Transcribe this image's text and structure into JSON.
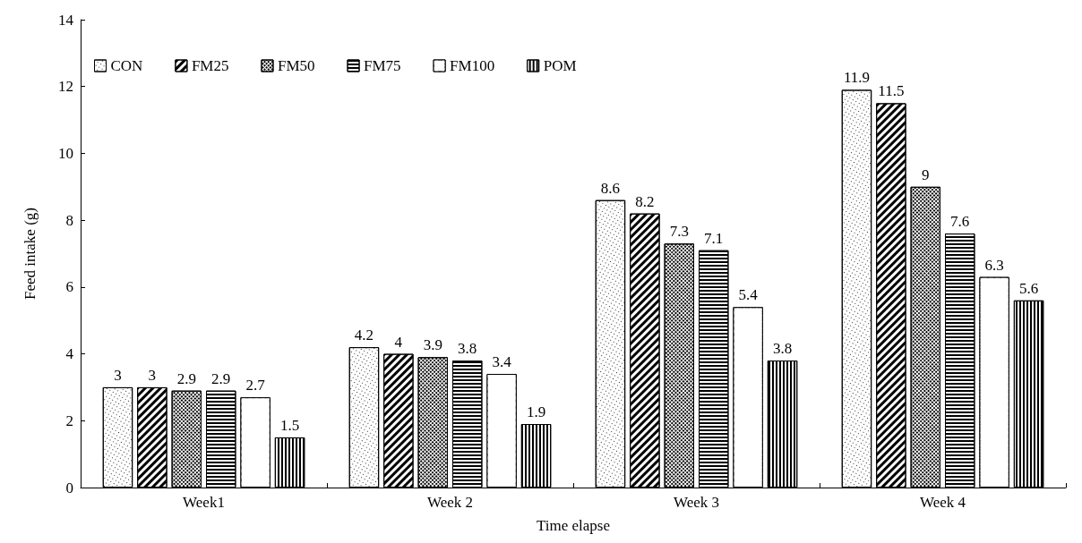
{
  "chart_data": {
    "type": "bar",
    "xlabel": "Time elapse",
    "ylabel": "Feed intake (g)",
    "categories": [
      "Week1",
      "Week 2",
      "Week 3",
      "Week 4"
    ],
    "series": [
      {
        "name": "CON",
        "values": [
          3,
          4.2,
          8.6,
          11.9
        ]
      },
      {
        "name": "FM25",
        "values": [
          3,
          4,
          8.2,
          11.5
        ]
      },
      {
        "name": "FM50",
        "values": [
          2.9,
          3.9,
          7.3,
          9
        ]
      },
      {
        "name": "FM75",
        "values": [
          2.9,
          3.8,
          7.1,
          7.6
        ]
      },
      {
        "name": "FM100",
        "values": [
          2.7,
          3.4,
          5.4,
          6.3
        ]
      },
      {
        "name": "POM",
        "values": [
          1.5,
          1.9,
          3.8,
          5.6
        ]
      }
    ],
    "ylim": [
      0,
      14
    ],
    "yticks": [
      0,
      2,
      4,
      6,
      8,
      10,
      12,
      14
    ],
    "data_labels": true,
    "grid": false,
    "legend": "top left"
  }
}
